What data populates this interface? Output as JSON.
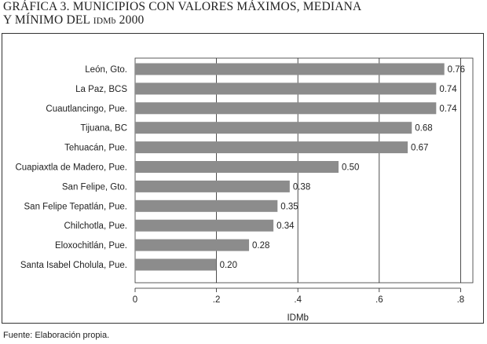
{
  "title": {
    "line1": "GRÁFICA 3. MUNICIPIOS CON VALORES MÁXIMOS, MEDIANA",
    "line2_prefix": "Y MÍNIMO DEL ",
    "line2_smallcaps": "IDMb",
    "line2_suffix": " 2000"
  },
  "source": "Fuente: Elaboración propia.",
  "chart_data": {
    "type": "bar",
    "orientation": "horizontal",
    "categories": [
      "León, Gto.",
      "La Paz, BCS",
      "Cuautlancingo, Pue.",
      "Tijuana, BC",
      "Tehuacán, Pue.",
      "Cuapiaxtla de Madero, Pue.",
      "San Felipe, Gto.",
      "San Felipe Tepatlán, Pue.",
      "Chilchotla, Pue.",
      "Eloxochitlán, Pue.",
      "Santa Isabel Cholula, Pue."
    ],
    "values": [
      0.76,
      0.74,
      0.74,
      0.68,
      0.67,
      0.5,
      0.38,
      0.35,
      0.34,
      0.28,
      0.2
    ],
    "value_labels": [
      "0.76",
      "0.74",
      "0.74",
      "0.68",
      "0.67",
      "0.50",
      "0.38",
      "0.35",
      "0.34",
      "0.28",
      "0.20"
    ],
    "xlabel": "IDMb",
    "xlim": [
      0,
      0.8
    ],
    "xticks": [
      0,
      0.2,
      0.4,
      0.6,
      0.8
    ],
    "xtick_labels": [
      "0",
      ".2",
      ".4",
      ".6",
      ".8"
    ],
    "grid": "vertical",
    "bar_color": "#8c8c8c"
  }
}
